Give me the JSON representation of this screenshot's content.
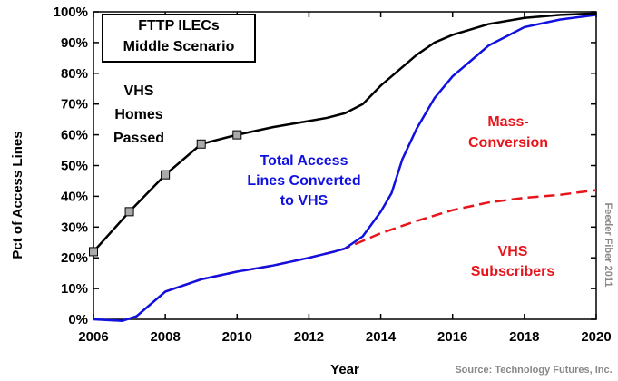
{
  "chart_data": {
    "type": "line",
    "x_label": "Year",
    "y_label": "Pct of Access Lines",
    "xlim": [
      2006,
      2020
    ],
    "xticks": [
      2006,
      2008,
      2010,
      2012,
      2014,
      2016,
      2018,
      2020
    ],
    "ylim": [
      0,
      100
    ],
    "yticks": [
      {
        "value": 0,
        "label": "0%"
      },
      {
        "value": 10,
        "label": "10%"
      },
      {
        "value": 20,
        "label": "20%"
      },
      {
        "value": 30,
        "label": "30%"
      },
      {
        "value": 40,
        "label": "40%"
      },
      {
        "value": 50,
        "label": "50%"
      },
      {
        "value": 60,
        "label": "60%"
      },
      {
        "value": 70,
        "label": "70%"
      },
      {
        "value": 80,
        "label": "80%"
      },
      {
        "value": 90,
        "label": "90%"
      },
      {
        "value": 100,
        "label": "100%"
      }
    ],
    "grid": false,
    "series": [
      {
        "color": "#e8141b",
        "dashed": true,
        "x": [
          2008,
          2009,
          2010,
          2011,
          2012,
          2012.7,
          2013,
          2014,
          2015,
          2016,
          2017,
          2018,
          2019,
          2020
        ],
        "values": [
          9,
          13,
          15.5,
          17.5,
          20,
          22,
          23,
          28,
          32,
          35.5,
          38,
          39.5,
          40.5,
          42
        ]
      },
      {
        "color": "#1010e0",
        "dashed": false,
        "x": [
          2006,
          2006.8,
          2007.2,
          2008,
          2008.5,
          2009,
          2010,
          2011,
          2012,
          2012.7,
          2013,
          2013.5,
          2014,
          2014.3,
          2014.6,
          2015,
          2015.5,
          2016,
          2016.5,
          2017,
          2017.5,
          2018,
          2019,
          2020
        ],
        "values": [
          0,
          -0.5,
          1,
          9,
          11,
          13,
          15.5,
          17.5,
          20,
          22,
          23,
          27,
          35,
          41,
          52,
          62,
          72,
          79,
          84,
          89,
          92,
          95,
          97.5,
          99
        ]
      },
      {
        "color": "#000000",
        "dashed": false,
        "x": [
          2006,
          2007,
          2008,
          2009,
          2010,
          2011,
          2012,
          2012.5,
          2013,
          2013.5,
          2014,
          2014.5,
          2015,
          2015.5,
          2016,
          2017,
          2018,
          2019,
          2020
        ],
        "values": [
          22,
          35,
          47,
          57,
          60,
          62.5,
          64.5,
          65.5,
          67,
          70,
          76,
          81,
          86,
          90,
          92.5,
          96,
          98,
          99,
          99.5
        ],
        "markers": [
          true,
          true,
          true,
          true,
          true,
          false,
          false,
          false,
          false,
          false,
          false,
          false,
          false,
          false,
          false,
          false,
          false,
          false,
          false
        ]
      }
    ],
    "annotations": [
      {
        "text": [
          "FTTP ILECs",
          "Middle Scenario"
        ],
        "color": "#000000",
        "boxed": true
      },
      {
        "text": [
          "VHS",
          "Homes",
          "Passed"
        ],
        "color": "#000000"
      },
      {
        "text": [
          "Total Access",
          "Lines Converted",
          "to VHS"
        ],
        "color": "#1010e0"
      },
      {
        "text": [
          "Mass-",
          "Conversion"
        ],
        "color": "#e8141b"
      },
      {
        "text": [
          "VHS",
          "Subscribers"
        ],
        "color": "#e8141b"
      }
    ],
    "watermark": "Feeder Fiber   2011",
    "source": "Source: Technology Futures, Inc."
  }
}
